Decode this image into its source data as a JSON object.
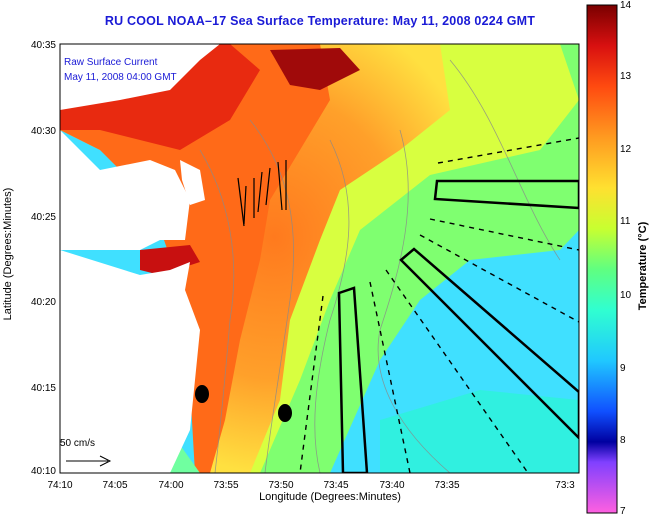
{
  "title": "RU COOL  NOAA–17  Sea Surface Temperature:  May 11, 2008 0224 GMT",
  "legend": {
    "line1": "Raw Surface Current",
    "line2": "May 11, 2008 04:00 GMT"
  },
  "reference_vector": "50 cm/s",
  "axes": {
    "xlabel": "Longitude (Degrees:Minutes)",
    "ylabel": "Latitude (Degrees:Minutes)",
    "xticks": [
      "74:10",
      "74:05",
      "74:00",
      "73:55",
      "73:50",
      "73:45",
      "73:40",
      "73:35",
      "73:3"
    ],
    "yticks": [
      "40:35",
      "40:30",
      "40:25",
      "40:20",
      "40:15",
      "40:10"
    ]
  },
  "colorbar": {
    "title": "Temperature (°C)",
    "ticks": [
      "14",
      "13",
      "12",
      "11",
      "10",
      "9",
      "8",
      "7"
    ],
    "min": 7,
    "max": 14
  },
  "colors": {
    "title_blue": "#1a1ad6",
    "land": "#ffffff",
    "vector": "#000000"
  }
}
